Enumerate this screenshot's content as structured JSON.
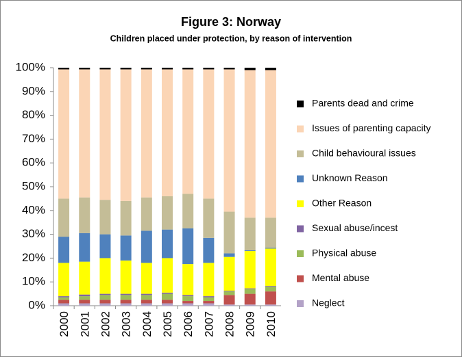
{
  "chart_data": {
    "type": "stacked_bar",
    "title": "Figure 3: Norway",
    "subtitle": "Children placed under protection, by reason of intervention",
    "categories": [
      "2000",
      "2001",
      "2002",
      "2003",
      "2004",
      "2005",
      "2006",
      "2007",
      "2008",
      "2009",
      "2010"
    ],
    "series": [
      {
        "name": "Neglect",
        "color": "#b3a2c7",
        "values": [
          1,
          1,
          1,
          1,
          1,
          1,
          1,
          1,
          0.5,
          0.5,
          0.5
        ]
      },
      {
        "name": "Mental abuse",
        "color": "#c0504d",
        "values": [
          1.5,
          1.5,
          1.5,
          1.5,
          1.5,
          1.5,
          1,
          1,
          4,
          4.5,
          5.5
        ]
      },
      {
        "name": "Physical abuse",
        "color": "#9bbb59",
        "values": [
          1,
          1.5,
          2,
          2,
          2,
          2.5,
          2,
          1.5,
          1.5,
          2,
          2
        ]
      },
      {
        "name": "Sexual abuse/incest",
        "color": "#8064a2",
        "values": [
          0.5,
          0.7,
          0.5,
          0.5,
          0.5,
          0.5,
          0.5,
          0.5,
          0.3,
          0.3,
          0.3
        ]
      },
      {
        "name": "Other Reason",
        "color": "#ffff00",
        "values": [
          14,
          13.8,
          15,
          14,
          13,
          14.5,
          13,
          14,
          14.2,
          15.7,
          15.7
        ]
      },
      {
        "name": "Unknown Reason",
        "color": "#4f81bd",
        "values": [
          11,
          12,
          10,
          10.5,
          13.5,
          12,
          15,
          10.5,
          1.5,
          0.3,
          0.3
        ]
      },
      {
        "name": "Child behavioural issues",
        "color": "#c4bd97",
        "values": [
          16,
          15,
          14.5,
          14.5,
          14,
          14,
          14.5,
          16.5,
          17.5,
          13.7,
          12.7
        ]
      },
      {
        "name": "Issues of parenting capacity",
        "color": "#fbd5b5",
        "values": [
          54.3,
          53.8,
          54.8,
          55.3,
          53.8,
          53.3,
          52.3,
          54.3,
          59.8,
          62,
          62
        ]
      },
      {
        "name": "Parents dead and crime",
        "color": "#000000",
        "values": [
          0.7,
          0.7,
          0.7,
          0.7,
          0.7,
          0.7,
          0.7,
          0.7,
          0.7,
          1,
          1
        ]
      }
    ],
    "ylim": [
      0,
      100
    ],
    "yticks": [
      {
        "value": 0,
        "label": "0%"
      },
      {
        "value": 10,
        "label": "10%"
      },
      {
        "value": 20,
        "label": "20%"
      },
      {
        "value": 30,
        "label": "30%"
      },
      {
        "value": 40,
        "label": "40%"
      },
      {
        "value": 50,
        "label": "50%"
      },
      {
        "value": 60,
        "label": "60%"
      },
      {
        "value": 70,
        "label": "70%"
      },
      {
        "value": 80,
        "label": "80%"
      },
      {
        "value": 90,
        "label": "90%"
      },
      {
        "value": 100,
        "label": "100%"
      }
    ],
    "legend": "right"
  }
}
